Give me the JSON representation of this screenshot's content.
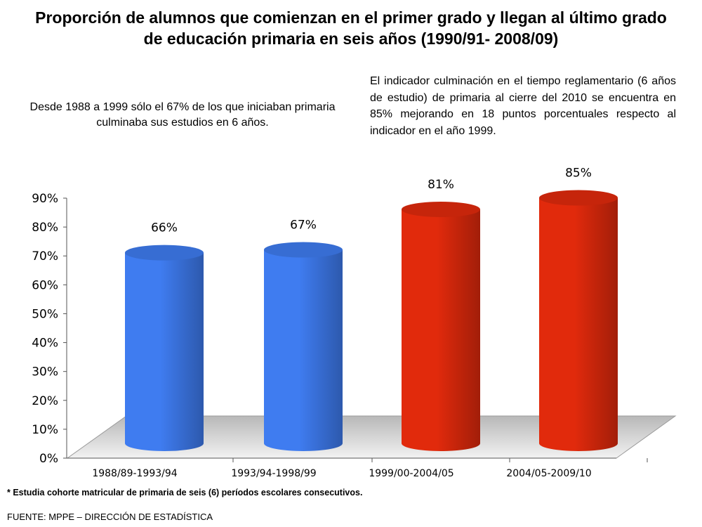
{
  "header": {
    "title_line1": "Proporción de alumnos que comienzan en el primer grado y llegan al último grado",
    "title_line2": "de educación primaria en seis años (1990/91- 2008/09)"
  },
  "notes": {
    "left": "Desde 1988 a 1999 sólo el 67% de los que iniciaban primaria culminaba sus estudios en 6 años.",
    "right": "El indicador culminación en el tiempo reglamentario (6 años de estudio) de primaria al cierre del 2010 se encuentra en 85% mejorando en 18 puntos porcentuales respecto al indicador en el año 1999."
  },
  "footer": {
    "footnote": "* Estudia cohorte matricular de primaria de seis (6)  períodos escolares consecutivos.",
    "source": "FUENTE: MPPE – DIRECCIÓN DE ESTADÍSTICA"
  },
  "chart_data": {
    "type": "bar",
    "style": "3d-cylinder",
    "categories": [
      "1988/89-1993/94",
      "1993/94-1998/99",
      "1999/00-2004/05",
      "2004/05-2009/10"
    ],
    "values": [
      66,
      67,
      81,
      85
    ],
    "data_labels": [
      "66%",
      "67%",
      "81%",
      "85%"
    ],
    "colors": [
      "#3f7cf0",
      "#3f7cf0",
      "#e12a0c",
      "#e12a0c"
    ],
    "yticks": [
      "0%",
      "10%",
      "20%",
      "30%",
      "40%",
      "50%",
      "60%",
      "70%",
      "80%",
      "90%"
    ],
    "ylim": [
      0,
      90
    ],
    "grid": false,
    "legend": "none"
  }
}
